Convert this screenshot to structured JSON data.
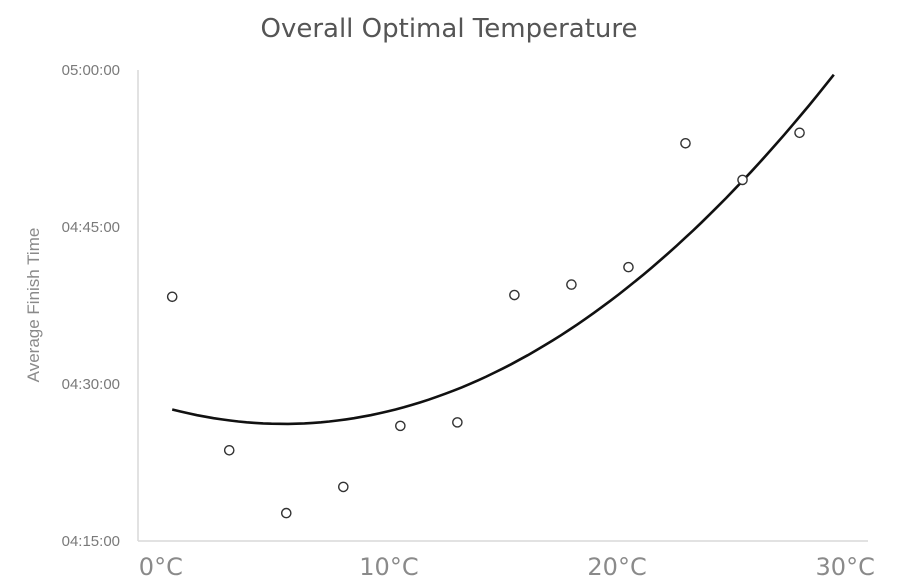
{
  "chart_data": {
    "type": "scatter",
    "title": "Overall Optimal Temperature",
    "xlabel": "",
    "ylabel": "Average Finish Time",
    "xlim": [
      -1,
      31
    ],
    "ylim": [
      "04:15:00",
      "05:00:00"
    ],
    "x_ticks": [
      {
        "value": 0,
        "label": "0°C"
      },
      {
        "value": 10,
        "label": "10°C"
      },
      {
        "value": 20,
        "label": "20°C"
      },
      {
        "value": 30,
        "label": "30°C"
      }
    ],
    "y_ticks": [
      "04:15:00",
      "04:30:00",
      "04:45:00",
      "05:00:00"
    ],
    "points": [
      {
        "x": 0.5,
        "y": "04:38:20"
      },
      {
        "x": 3,
        "y": "04:23:40"
      },
      {
        "x": 5.5,
        "y": "04:17:40"
      },
      {
        "x": 8,
        "y": "04:20:10"
      },
      {
        "x": 10.5,
        "y": "04:26:00"
      },
      {
        "x": 13,
        "y": "04:26:20"
      },
      {
        "x": 15.5,
        "y": "04:38:30"
      },
      {
        "x": 18,
        "y": "04:39:30"
      },
      {
        "x": 20.5,
        "y": "04:41:10"
      },
      {
        "x": 23,
        "y": "04:53:00"
      },
      {
        "x": 25.5,
        "y": "04:49:30"
      },
      {
        "x": 28,
        "y": "04:54:00"
      }
    ],
    "trendline": {
      "type": "polynomial",
      "order": 2,
      "x_range": [
        0.5,
        29.5
      ],
      "samples": [
        {
          "x": 0.5,
          "y": "04:27:30"
        },
        {
          "x": 5,
          "y": "04:26:05"
        },
        {
          "x": 10,
          "y": "04:27:40"
        },
        {
          "x": 15,
          "y": "04:31:40"
        },
        {
          "x": 20,
          "y": "04:38:30"
        },
        {
          "x": 25,
          "y": "04:47:30"
        },
        {
          "x": 29.5,
          "y": "05:00:00"
        }
      ]
    },
    "grid": false,
    "legend": "none"
  }
}
